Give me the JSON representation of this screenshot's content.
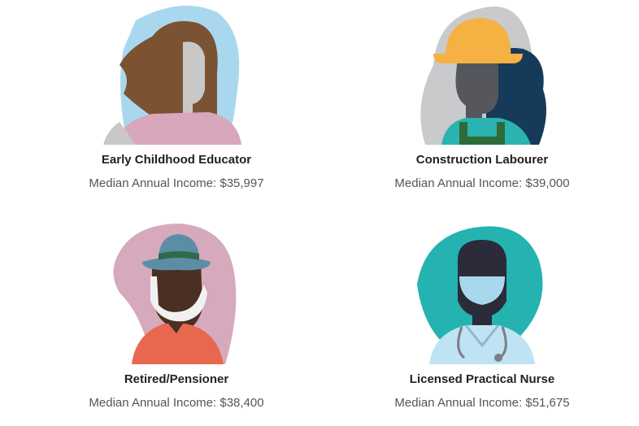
{
  "cards": [
    {
      "title": "Early Childhood Educator",
      "income": "Median Annual Income: $35,997"
    },
    {
      "title": "Construction Labourer",
      "income": "Median Annual Income: $39,000"
    },
    {
      "title": "Retired/Pensioner",
      "income": "Median Annual Income: $38,400"
    },
    {
      "title": "Licensed Practical Nurse",
      "income": "Median Annual Income: $51,675"
    }
  ]
}
